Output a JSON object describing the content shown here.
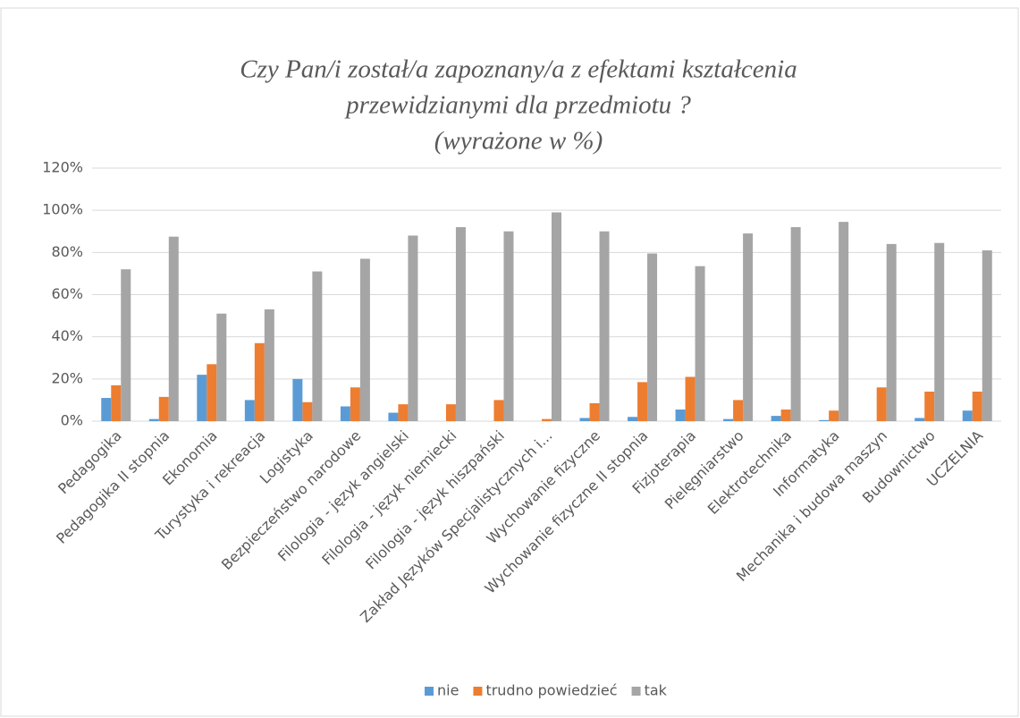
{
  "chart_data": {
    "type": "bar",
    "title": [
      "Czy Pan/i został/a zapoznany/a z efektami kształcenia",
      "przewidzianymi dla przedmiotu ?",
      "(wyrażone w %)"
    ],
    "categories": [
      "Pedagogika",
      "Pedagogika II stopnia",
      "Ekonomia",
      "Turystyka i rekreacja",
      "Logistyka",
      "Bezpieczeństwo narodowe",
      "Filologia - język angielski",
      "Filologia - język niemiecki",
      "Filologia - język hiszpański",
      "Zakład Języków Specjalistycznych i...",
      "Wychowanie fizyczne",
      "Wychowanie fizyczne II stopnia",
      "Fizjoterapia",
      "Pielęgniarstwo",
      "Elektrotechnika",
      "Informatyka",
      "Mechanika i budowa maszyn",
      "Budownictwo",
      "UCZELNIA"
    ],
    "series": [
      {
        "name": "nie",
        "color": "#5b9bd5",
        "values": [
          11,
          1,
          22,
          10,
          20,
          7,
          4,
          0,
          0,
          0,
          1.5,
          2,
          5.5,
          1,
          2.5,
          0.5,
          0,
          1.5,
          5
        ]
      },
      {
        "name": "trudno powiedzieć",
        "color": "#ed7d31",
        "values": [
          17,
          11.5,
          27,
          37,
          9,
          16,
          8,
          8,
          10,
          1,
          8.5,
          18.5,
          21,
          10,
          5.5,
          5,
          16,
          14,
          14
        ]
      },
      {
        "name": "tak",
        "color": "#a5a5a5",
        "values": [
          72,
          87.5,
          51,
          53,
          71,
          77,
          88,
          92,
          90,
          99,
          90,
          79.5,
          73.5,
          89,
          92,
          94.5,
          84,
          84.5,
          81
        ]
      }
    ],
    "ylim": [
      0,
      120
    ],
    "yticks": [
      {
        "value": 0,
        "label": "0%"
      },
      {
        "value": 20,
        "label": "20%"
      },
      {
        "value": 40,
        "label": "40%"
      },
      {
        "value": 60,
        "label": "60%"
      },
      {
        "value": 80,
        "label": "80%"
      },
      {
        "value": 100,
        "label": "100%"
      },
      {
        "value": 120,
        "label": "120%"
      }
    ],
    "grid": true,
    "legend": "bottom"
  }
}
